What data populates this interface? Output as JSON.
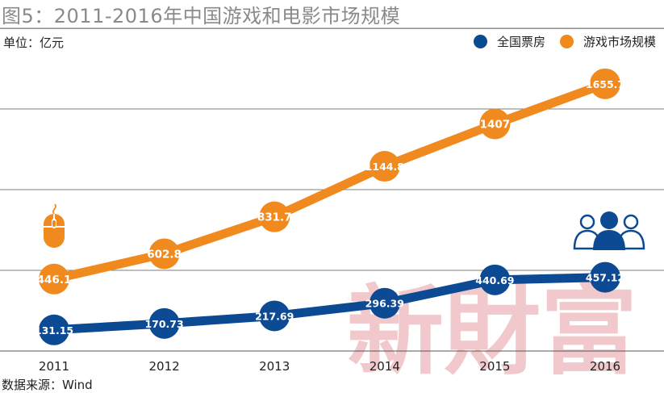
{
  "header": {
    "title": "图5：2011-2016年中国游戏和电影市场规模",
    "unit": "单位：亿元",
    "source": "数据来源：Wind"
  },
  "watermark": "新財富",
  "colors": {
    "orange": "#F08A1E",
    "blue": "#0D4A94",
    "grid": "#555555",
    "watermark": "#F1C9CC"
  },
  "icons": {
    "game": "mouse-icon",
    "film": "audience-icon"
  },
  "chart_data": {
    "type": "line",
    "title": "图5：2011-2016年中国游戏和电影市场规模",
    "ylabel": "单位：亿元",
    "xlabel": "",
    "categories": [
      "2011",
      "2012",
      "2013",
      "2014",
      "2015",
      "2016"
    ],
    "ylim": [
      0,
      2000
    ],
    "grid": true,
    "legend_position": "top-right",
    "series": [
      {
        "name": "全国票房",
        "color": "#0D4A94",
        "values": [
          131.15,
          170.73,
          217.69,
          296.39,
          440.69,
          457.12
        ],
        "labels": [
          "131.15",
          "170.73",
          "217.69",
          "296.39",
          "440.69",
          "457.12"
        ]
      },
      {
        "name": "游戏市场规模",
        "color": "#F08A1E",
        "values": [
          446.1,
          602.8,
          831.7,
          1144.8,
          1407,
          1655.7
        ],
        "labels": [
          "446.1",
          "602.8",
          "831.7",
          "1144.8",
          "1407",
          "1655.7"
        ]
      }
    ]
  }
}
